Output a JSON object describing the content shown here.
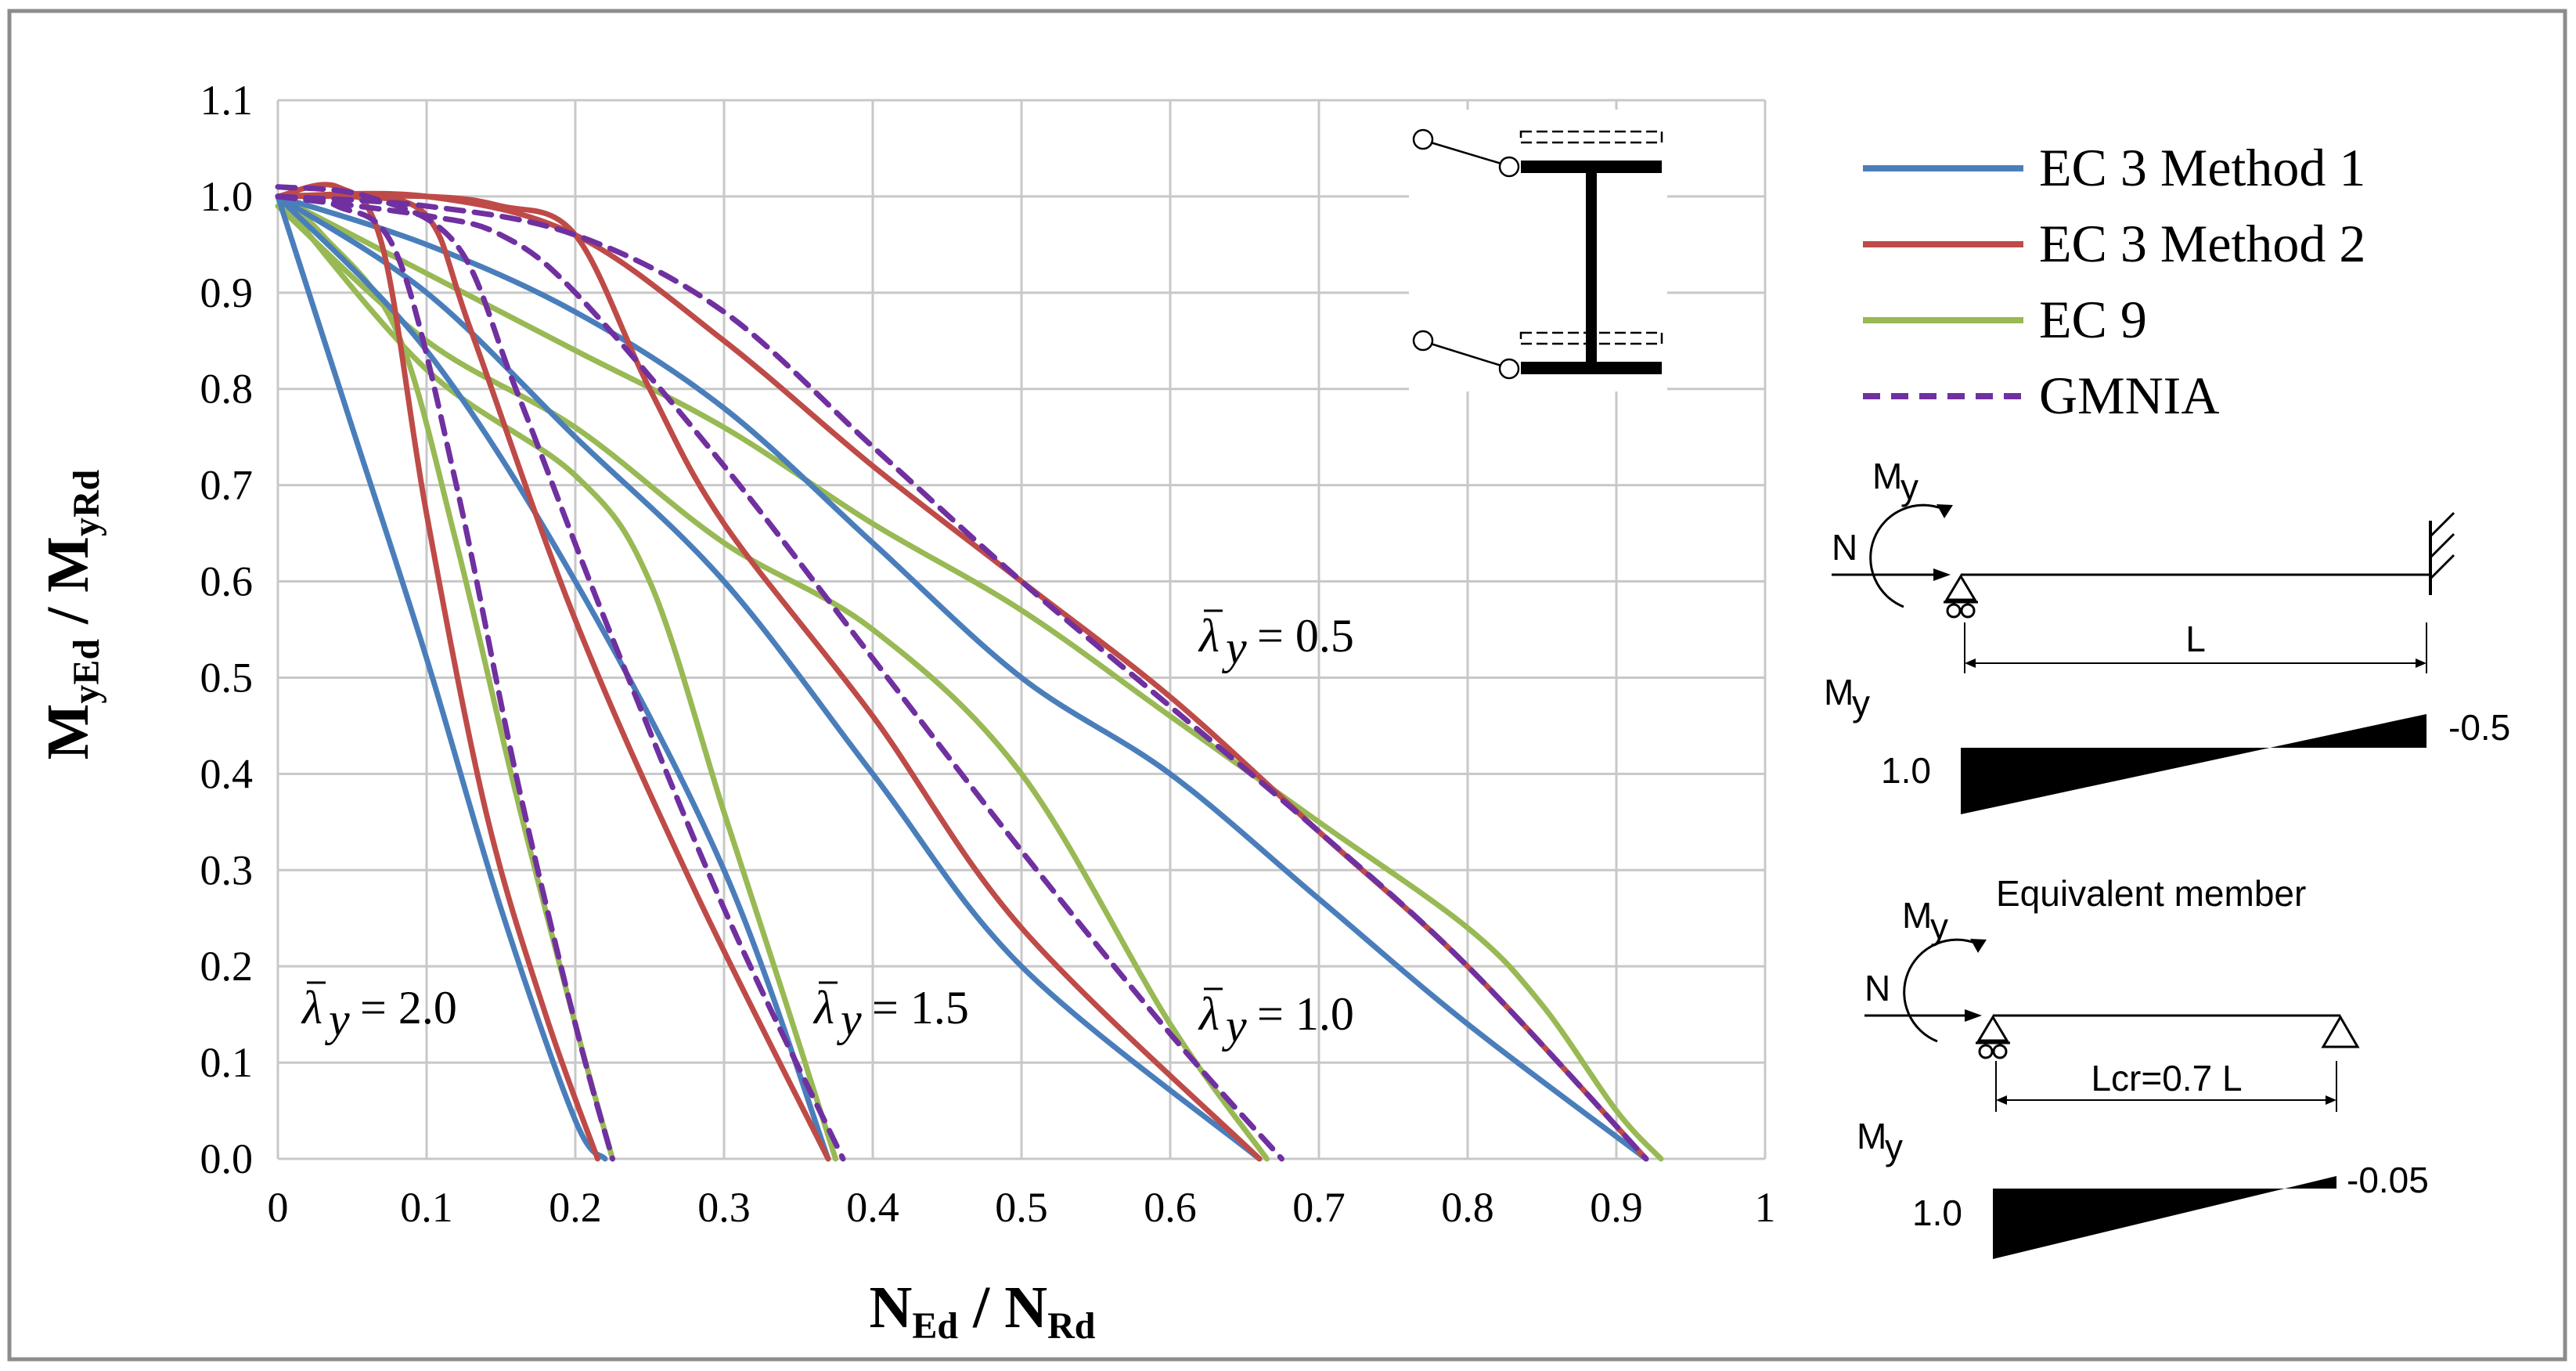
{
  "chart_data": {
    "type": "line",
    "xlabel": "N",
    "xlabel_sub": "Ed",
    "xlabel_mid": " / N",
    "xlabel_sub2": "Rd",
    "ylabel": "M",
    "ylabel_sub": "yEd",
    "ylabel_mid": " / M",
    "ylabel_sub2": "yRd",
    "xlim": [
      0,
      1
    ],
    "ylim": [
      0,
      1.1
    ],
    "x_ticks": [
      "0",
      "0.1",
      "0.2",
      "0.3",
      "0.4",
      "0.5",
      "0.6",
      "0.7",
      "0.8",
      "0.9",
      "1"
    ],
    "y_ticks": [
      "0.0",
      "0.1",
      "0.2",
      "0.3",
      "0.4",
      "0.5",
      "0.6",
      "0.7",
      "0.8",
      "0.9",
      "1.0",
      "1.1"
    ],
    "grid": true,
    "legend_position": "right",
    "series_styles": [
      {
        "name": "EC 3 Method 1",
        "color": "#4a7ebb",
        "dash": "solid"
      },
      {
        "name": "EC 3 Method 2",
        "color": "#be4b48",
        "dash": "solid"
      },
      {
        "name": "EC 9",
        "color": "#98b954",
        "dash": "solid"
      },
      {
        "name": "GMNIA",
        "color": "#7030a0",
        "dash": "dashed"
      }
    ],
    "series": [
      {
        "style": 0,
        "group": "2.0",
        "points": [
          [
            0,
            1.0
          ],
          [
            0.05,
            0.76
          ],
          [
            0.1,
            0.52
          ],
          [
            0.15,
            0.26
          ],
          [
            0.2,
            0.04
          ],
          [
            0.22,
            0.0
          ]
        ]
      },
      {
        "style": 1,
        "group": "2.0",
        "points": [
          [
            0,
            1.0
          ],
          [
            0.04,
            1.01
          ],
          [
            0.07,
            0.95
          ],
          [
            0.1,
            0.67
          ],
          [
            0.14,
            0.36
          ],
          [
            0.18,
            0.15
          ],
          [
            0.215,
            0.0
          ]
        ]
      },
      {
        "style": 2,
        "group": "2.0",
        "points": [
          [
            0,
            1.0
          ],
          [
            0.03,
            0.96
          ],
          [
            0.08,
            0.86
          ],
          [
            0.12,
            0.64
          ],
          [
            0.16,
            0.38
          ],
          [
            0.2,
            0.14
          ],
          [
            0.225,
            0.0
          ]
        ]
      },
      {
        "style": 3,
        "group": "2.0",
        "points": [
          [
            0,
            1.0
          ],
          [
            0.04,
            0.99
          ],
          [
            0.08,
            0.94
          ],
          [
            0.12,
            0.7
          ],
          [
            0.16,
            0.4
          ],
          [
            0.2,
            0.14
          ],
          [
            0.225,
            0.0
          ]
        ]
      },
      {
        "style": 0,
        "group": "1.5",
        "points": [
          [
            0,
            1.0
          ],
          [
            0.1,
            0.84
          ],
          [
            0.2,
            0.6
          ],
          [
            0.3,
            0.3
          ],
          [
            0.37,
            0.0
          ]
        ]
      },
      {
        "style": 1,
        "group": "1.5",
        "points": [
          [
            0,
            1.0
          ],
          [
            0.05,
            1.0
          ],
          [
            0.1,
            0.98
          ],
          [
            0.13,
            0.86
          ],
          [
            0.2,
            0.56
          ],
          [
            0.28,
            0.28
          ],
          [
            0.37,
            0.0
          ]
        ]
      },
      {
        "style": 2,
        "group": "1.5",
        "points": [
          [
            0,
            1.0
          ],
          [
            0.1,
            0.82
          ],
          [
            0.2,
            0.71
          ],
          [
            0.25,
            0.6
          ],
          [
            0.3,
            0.36
          ],
          [
            0.34,
            0.17
          ],
          [
            0.375,
            0.0
          ]
        ]
      },
      {
        "style": 3,
        "group": "1.5",
        "points": [
          [
            0,
            1.01
          ],
          [
            0.06,
            1.0
          ],
          [
            0.12,
            0.95
          ],
          [
            0.16,
            0.8
          ],
          [
            0.22,
            0.56
          ],
          [
            0.3,
            0.26
          ],
          [
            0.38,
            0.0
          ]
        ]
      },
      {
        "style": 0,
        "group": "1.0",
        "points": [
          [
            0,
            1.0
          ],
          [
            0.1,
            0.9
          ],
          [
            0.2,
            0.75
          ],
          [
            0.3,
            0.6
          ],
          [
            0.4,
            0.4
          ],
          [
            0.5,
            0.2
          ],
          [
            0.66,
            0.0
          ]
        ]
      },
      {
        "style": 1,
        "group": "1.0",
        "points": [
          [
            0,
            1.0
          ],
          [
            0.1,
            1.0
          ],
          [
            0.15,
            0.99
          ],
          [
            0.2,
            0.96
          ],
          [
            0.25,
            0.8
          ],
          [
            0.3,
            0.66
          ],
          [
            0.4,
            0.46
          ],
          [
            0.5,
            0.24
          ],
          [
            0.66,
            0.0
          ]
        ]
      },
      {
        "style": 2,
        "group": "1.0",
        "points": [
          [
            0,
            0.99
          ],
          [
            0.1,
            0.85
          ],
          [
            0.2,
            0.76
          ],
          [
            0.3,
            0.64
          ],
          [
            0.4,
            0.55
          ],
          [
            0.5,
            0.4
          ],
          [
            0.6,
            0.14
          ],
          [
            0.665,
            0.0
          ]
        ]
      },
      {
        "style": 3,
        "group": "1.0",
        "points": [
          [
            0,
            1.0
          ],
          [
            0.1,
            0.98
          ],
          [
            0.15,
            0.96
          ],
          [
            0.2,
            0.9
          ],
          [
            0.3,
            0.72
          ],
          [
            0.4,
            0.52
          ],
          [
            0.5,
            0.32
          ],
          [
            0.6,
            0.13
          ],
          [
            0.675,
            0.0
          ]
        ]
      },
      {
        "style": 0,
        "group": "0.5",
        "points": [
          [
            0,
            1.0
          ],
          [
            0.1,
            0.95
          ],
          [
            0.2,
            0.88
          ],
          [
            0.3,
            0.78
          ],
          [
            0.4,
            0.64
          ],
          [
            0.5,
            0.5
          ],
          [
            0.6,
            0.4
          ],
          [
            0.7,
            0.27
          ],
          [
            0.8,
            0.14
          ],
          [
            0.92,
            0.0
          ]
        ]
      },
      {
        "style": 1,
        "group": "0.5",
        "points": [
          [
            0,
            1.0
          ],
          [
            0.1,
            1.0
          ],
          [
            0.2,
            0.96
          ],
          [
            0.3,
            0.85
          ],
          [
            0.4,
            0.72
          ],
          [
            0.5,
            0.6
          ],
          [
            0.6,
            0.48
          ],
          [
            0.7,
            0.34
          ],
          [
            0.8,
            0.2
          ],
          [
            0.92,
            0.0
          ]
        ]
      },
      {
        "style": 2,
        "group": "0.5",
        "points": [
          [
            0,
            1.0
          ],
          [
            0.1,
            0.92
          ],
          [
            0.2,
            0.84
          ],
          [
            0.3,
            0.76
          ],
          [
            0.4,
            0.66
          ],
          [
            0.5,
            0.57
          ],
          [
            0.6,
            0.46
          ],
          [
            0.7,
            0.35
          ],
          [
            0.8,
            0.24
          ],
          [
            0.85,
            0.16
          ],
          [
            0.9,
            0.05
          ],
          [
            0.93,
            0.0
          ]
        ]
      },
      {
        "style": 3,
        "group": "0.5",
        "points": [
          [
            0,
            1.0
          ],
          [
            0.1,
            0.99
          ],
          [
            0.2,
            0.96
          ],
          [
            0.3,
            0.88
          ],
          [
            0.4,
            0.74
          ],
          [
            0.5,
            0.6
          ],
          [
            0.6,
            0.47
          ],
          [
            0.7,
            0.34
          ],
          [
            0.8,
            0.2
          ],
          [
            0.92,
            0.0
          ]
        ]
      }
    ],
    "slenderness_labels": [
      {
        "symbol": "λ",
        "sub": "y",
        "value": "= 2.0"
      },
      {
        "symbol": "λ",
        "sub": "y",
        "value": "= 1.5"
      },
      {
        "symbol": "λ",
        "sub": "y",
        "value": "= 1.0"
      },
      {
        "symbol": "λ",
        "sub": "y",
        "value": "= 0.5"
      }
    ]
  },
  "diagram": {
    "top": {
      "moment_label": "M",
      "moment_sub": "y",
      "force_label": "N",
      "length_label": "L",
      "diagram_label": "M",
      "diagram_sub": "y",
      "left_value": "1.0",
      "right_value": "-0.5"
    },
    "bottom": {
      "title": "Equivalent member",
      "moment_label": "M",
      "moment_sub": "y",
      "force_label": "N",
      "length_label": "Lcr=0.7 L",
      "diagram_label": "M",
      "diagram_sub": "y",
      "left_value": "1.0",
      "right_value": "-0.05"
    }
  }
}
